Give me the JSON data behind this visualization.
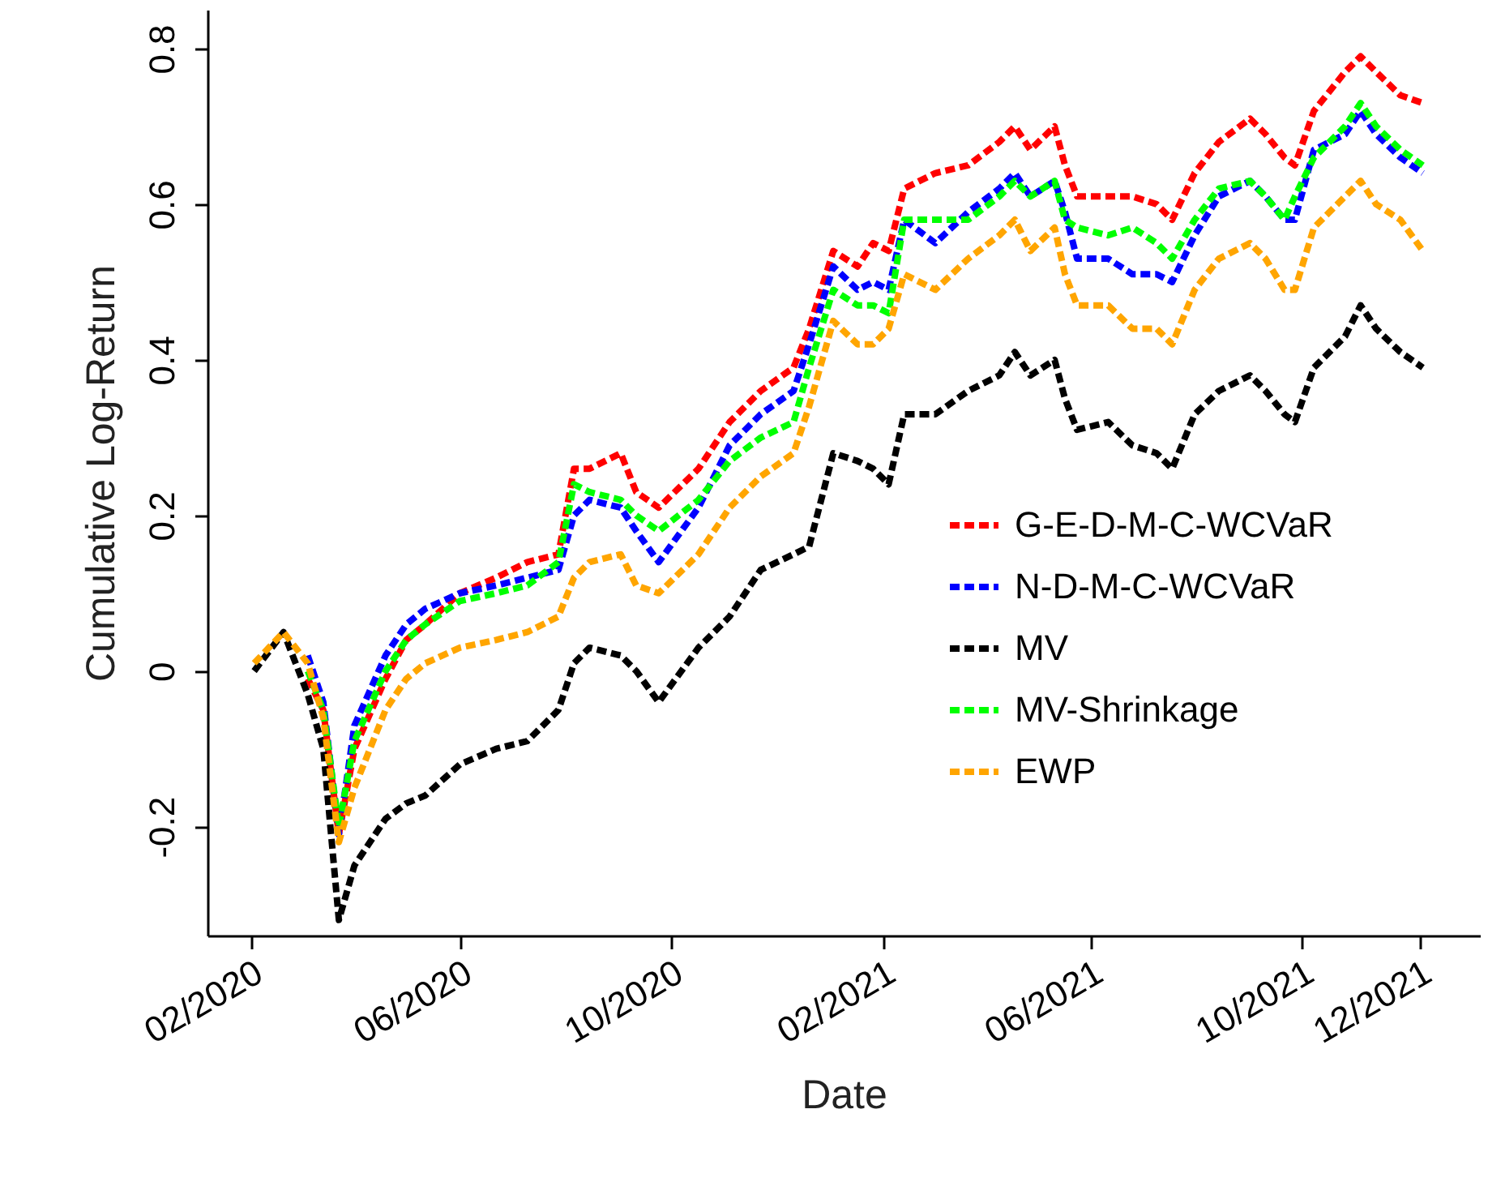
{
  "chart_data": {
    "type": "line",
    "xlabel": "Date",
    "ylabel": "Cumulative Log-Return",
    "x": [
      "2020-02-03",
      "2020-02-20",
      "2020-03-05",
      "2020-03-14",
      "2020-03-23",
      "2020-04-01",
      "2020-04-19",
      "2020-05-01",
      "2020-05-12",
      "2020-06-01",
      "2020-06-22",
      "2020-07-10",
      "2020-07-28",
      "2020-08-06",
      "2020-08-15",
      "2020-09-02",
      "2020-09-11",
      "2020-09-24",
      "2020-10-17",
      "2020-11-04",
      "2020-11-22",
      "2020-12-11",
      "2020-12-20",
      "2021-01-03",
      "2021-01-17",
      "2021-01-26",
      "2021-02-04",
      "2021-02-13",
      "2021-03-03",
      "2021-03-22",
      "2021-04-09",
      "2021-04-18",
      "2021-04-27",
      "2021-05-11",
      "2021-05-17",
      "2021-05-24",
      "2021-06-11",
      "2021-06-25",
      "2021-07-09",
      "2021-07-18",
      "2021-07-31",
      "2021-08-14",
      "2021-09-01",
      "2021-09-10",
      "2021-09-21",
      "2021-09-27",
      "2021-10-08",
      "2021-10-26",
      "2021-11-04",
      "2021-11-13",
      "2021-11-27",
      "2021-12-10"
    ],
    "series": [
      {
        "name": "G-E-D-M-C-WCVaR",
        "color": "#ff0000",
        "values": [
          null,
          null,
          -0.01,
          -0.05,
          -0.21,
          -0.1,
          -0.01,
          0.04,
          0.06,
          0.1,
          0.12,
          0.14,
          0.15,
          0.26,
          0.26,
          0.28,
          0.23,
          0.21,
          0.26,
          0.32,
          0.36,
          0.39,
          0.44,
          0.54,
          0.52,
          0.55,
          0.54,
          0.62,
          0.64,
          0.65,
          0.68,
          0.7,
          0.67,
          0.7,
          0.65,
          0.61,
          0.61,
          0.61,
          0.6,
          0.58,
          0.64,
          0.68,
          0.71,
          0.69,
          0.66,
          0.65,
          0.72,
          0.77,
          0.79,
          0.77,
          0.74,
          0.73
        ]
      },
      {
        "name": "N-D-M-C-WCVaR",
        "color": "#0000ff",
        "values": [
          null,
          null,
          0.02,
          -0.04,
          -0.21,
          -0.07,
          0.02,
          0.06,
          0.08,
          0.1,
          0.11,
          0.12,
          0.13,
          0.2,
          0.22,
          0.21,
          0.18,
          0.14,
          0.21,
          0.29,
          0.33,
          0.36,
          0.42,
          0.52,
          0.49,
          0.5,
          0.49,
          0.58,
          0.55,
          0.59,
          0.62,
          0.64,
          0.61,
          0.63,
          0.59,
          0.53,
          0.53,
          0.51,
          0.51,
          0.5,
          0.56,
          0.61,
          0.63,
          0.61,
          0.58,
          0.58,
          0.67,
          0.69,
          0.72,
          0.69,
          0.66,
          0.64
        ]
      },
      {
        "name": "MV",
        "color": "#000000",
        "values": [
          0,
          0.05,
          -0.03,
          -0.1,
          -0.32,
          -0.25,
          -0.19,
          -0.17,
          -0.16,
          -0.12,
          -0.1,
          -0.09,
          -0.05,
          0.01,
          0.03,
          0.02,
          0,
          -0.04,
          0.03,
          0.07,
          0.13,
          0.15,
          0.16,
          0.28,
          0.27,
          0.26,
          0.24,
          0.33,
          0.33,
          0.36,
          0.38,
          0.41,
          0.38,
          0.4,
          0.35,
          0.31,
          0.32,
          0.29,
          0.28,
          0.26,
          0.33,
          0.36,
          0.38,
          0.36,
          0.33,
          0.32,
          0.39,
          0.43,
          0.47,
          0.44,
          0.41,
          0.39
        ]
      },
      {
        "name": "MV-Shrinkage",
        "color": "#00ff00",
        "values": [
          null,
          null,
          0,
          -0.05,
          -0.2,
          -0.09,
          0,
          0.04,
          0.06,
          0.09,
          0.1,
          0.11,
          0.14,
          0.24,
          0.23,
          0.22,
          0.2,
          0.18,
          0.22,
          0.27,
          0.3,
          0.32,
          0.39,
          0.49,
          0.47,
          0.47,
          0.46,
          0.58,
          0.58,
          0.58,
          0.61,
          0.63,
          0.61,
          0.63,
          0.58,
          0.57,
          0.56,
          0.57,
          0.55,
          0.53,
          0.58,
          0.62,
          0.63,
          0.61,
          0.58,
          0.61,
          0.66,
          0.7,
          0.73,
          0.7,
          0.67,
          0.65
        ]
      },
      {
        "name": "EWP",
        "color": "#ffa500",
        "values": [
          0.01,
          0.05,
          0.01,
          -0.06,
          -0.22,
          -0.15,
          -0.05,
          -0.01,
          0.01,
          0.03,
          0.04,
          0.05,
          0.07,
          0.12,
          0.14,
          0.15,
          0.11,
          0.1,
          0.15,
          0.21,
          0.25,
          0.28,
          0.34,
          0.45,
          0.42,
          0.42,
          0.44,
          0.51,
          0.49,
          0.53,
          0.56,
          0.58,
          0.54,
          0.57,
          0.51,
          0.47,
          0.47,
          0.44,
          0.44,
          0.42,
          0.49,
          0.53,
          0.55,
          0.53,
          0.49,
          0.49,
          0.57,
          0.61,
          0.63,
          0.6,
          0.58,
          0.54
        ]
      }
    ],
    "xlim": [
      "2020-01-07",
      "2022-01-12"
    ],
    "xticks": [
      {
        "value": "2020-02-01",
        "label": "02/2020"
      },
      {
        "value": "2020-06-01",
        "label": "06/2020"
      },
      {
        "value": "2020-10-01",
        "label": "10/2020"
      },
      {
        "value": "2021-02-01",
        "label": "02/2021"
      },
      {
        "value": "2021-06-01",
        "label": "06/2021"
      },
      {
        "value": "2021-10-01",
        "label": "10/2021"
      },
      {
        "value": "2021-12-08",
        "label": "12/2021"
      }
    ],
    "ylim": [
      -0.34,
      0.85
    ],
    "yticks": [
      -0.2,
      0,
      0.2,
      0.4,
      0.6,
      0.8
    ],
    "legend": "bottom right",
    "marker": "none",
    "line_style": "dashed"
  }
}
